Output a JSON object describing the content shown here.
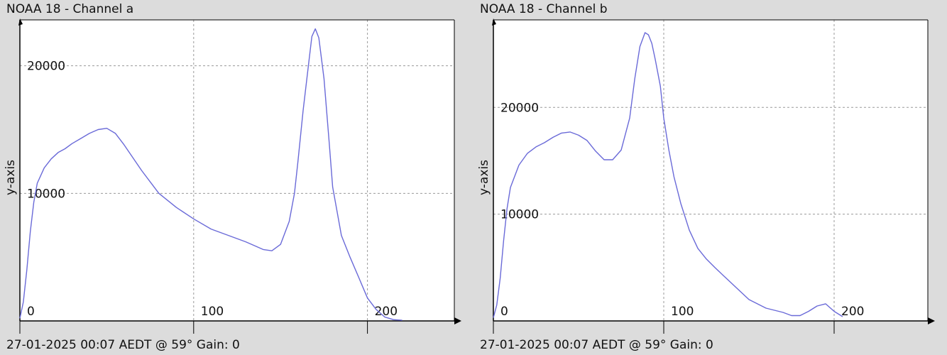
{
  "colors": {
    "background": "#dcdcdc",
    "plot_area": "#ffffff",
    "grid": "#9a9a9a",
    "axis": "#000000",
    "series": "#6a6ad8"
  },
  "chart_data": [
    {
      "type": "line",
      "title": "NOAA 18 - Channel a",
      "footer": "27-01-2025 00:07 AEDT @ 59° Gain: 0",
      "ylabel": "y-axis",
      "xlabel": "",
      "xlim": [
        0,
        250
      ],
      "ylim": [
        0,
        23600
      ],
      "xticks": [
        0,
        100,
        200
      ],
      "yticks": [
        10000,
        20000
      ],
      "grid": true,
      "series": [
        {
          "x": [
            0,
            2,
            4,
            6,
            8,
            10,
            14,
            18,
            22,
            26,
            30,
            35,
            40,
            45,
            50,
            55,
            60,
            65,
            70,
            75,
            80,
            90,
            100,
            110,
            120,
            130,
            135,
            140,
            145,
            150,
            155,
            158,
            160,
            163,
            166,
            168,
            170,
            172,
            175,
            178,
            180,
            185,
            190,
            195,
            200,
            205,
            210,
            215,
            220
          ],
          "y": [
            200,
            1500,
            4000,
            7000,
            9300,
            10800,
            12000,
            12700,
            13200,
            13500,
            13900,
            14300,
            14700,
            15000,
            15100,
            14700,
            13800,
            12800,
            11800,
            10900,
            10000,
            8900,
            8000,
            7200,
            6700,
            6200,
            5900,
            5600,
            5500,
            6000,
            7800,
            10000,
            12500,
            16500,
            20000,
            22300,
            22900,
            22200,
            19000,
            14000,
            10500,
            6700,
            5000,
            3400,
            1800,
            900,
            300,
            100,
            50
          ]
        }
      ]
    },
    {
      "type": "line",
      "title": "NOAA 18 - Channel b",
      "footer": "27-01-2025 00:07 AEDT @ 59° Gain: 0",
      "ylabel": "y-axis",
      "xlabel": "",
      "xlim": [
        0,
        255
      ],
      "ylim": [
        0,
        28200
      ],
      "xticks": [
        0,
        100,
        200
      ],
      "yticks": [
        10000,
        20000
      ],
      "grid": true,
      "series": [
        {
          "x": [
            0,
            2,
            4,
            6,
            8,
            10,
            15,
            20,
            25,
            30,
            35,
            40,
            45,
            50,
            55,
            60,
            65,
            70,
            75,
            80,
            83,
            86,
            89,
            91,
            93,
            95,
            98,
            100,
            103,
            106,
            110,
            115,
            120,
            125,
            130,
            140,
            150,
            160,
            170,
            175,
            180,
            185,
            190,
            195,
            200,
            205
          ],
          "y": [
            300,
            1500,
            4000,
            7500,
            10500,
            12500,
            14600,
            15700,
            16300,
            16700,
            17200,
            17600,
            17700,
            17400,
            16900,
            15900,
            15100,
            15100,
            16000,
            19000,
            22700,
            25700,
            27000,
            26800,
            26000,
            24500,
            22000,
            19000,
            16000,
            13500,
            11000,
            8500,
            6800,
            5800,
            5000,
            3500,
            2000,
            1200,
            800,
            500,
            500,
            900,
            1400,
            1600,
            900,
            400
          ]
        }
      ]
    }
  ]
}
